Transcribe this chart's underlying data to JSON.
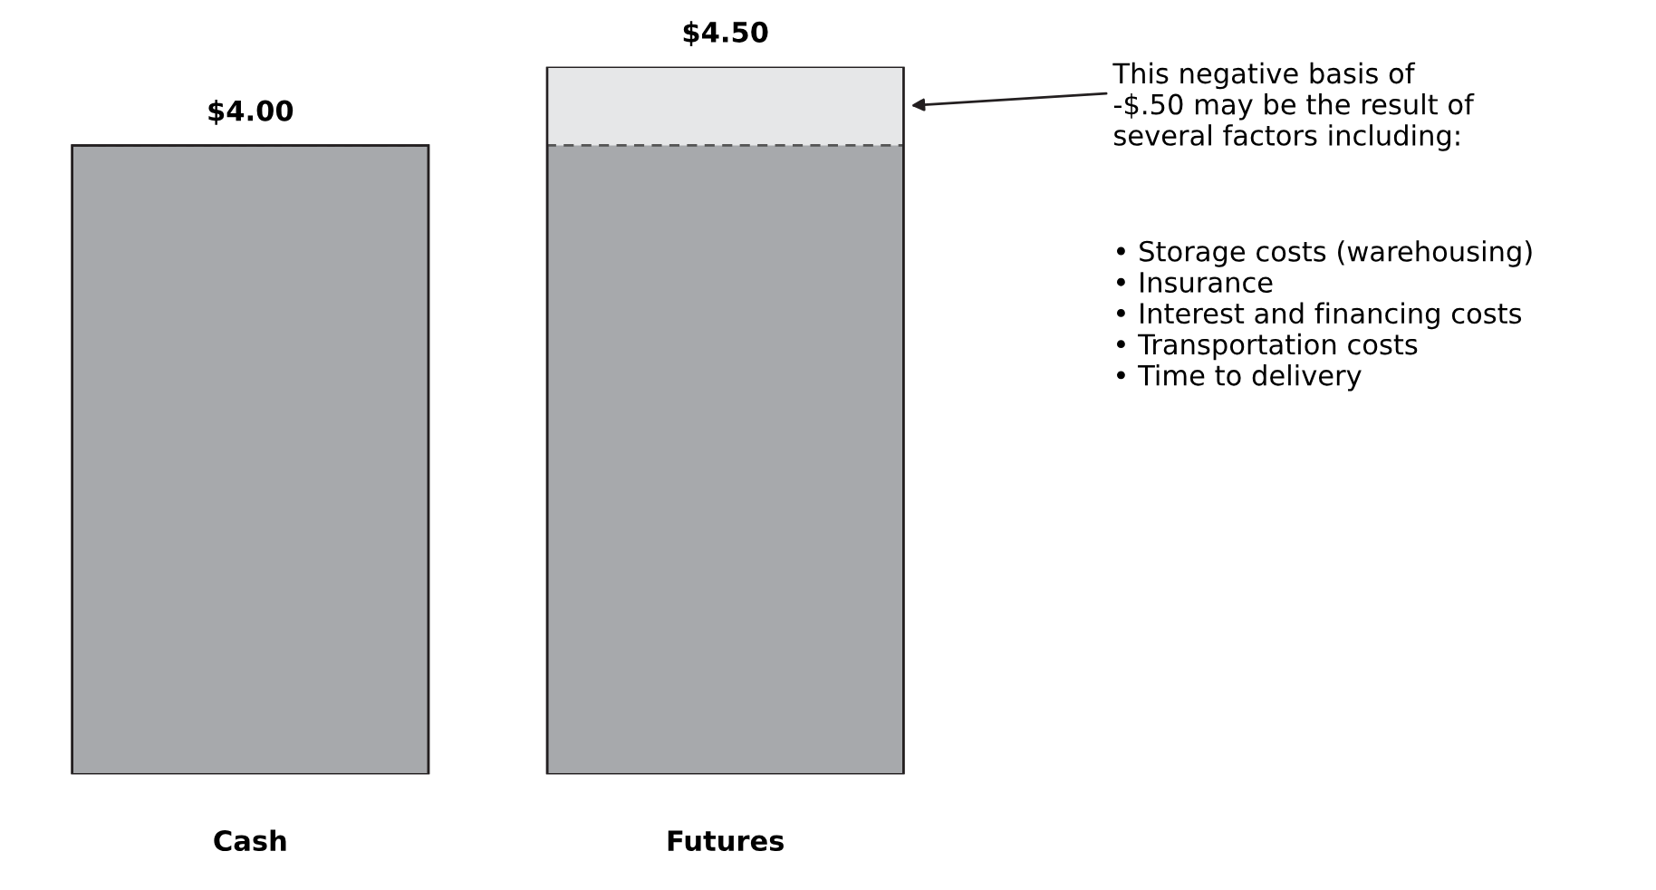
{
  "chart_data": {
    "type": "bar",
    "categories": [
      "Cash",
      "Futures"
    ],
    "series": [
      {
        "color": "#a7a9ac",
        "values": [
          4.0,
          4.5
        ],
        "value_labels": [
          "$4.00",
          "$4.50"
        ]
      }
    ],
    "bands": [
      {
        "axis": "y",
        "from": 4.0,
        "to": 4.5,
        "color": "#e6e7e8"
      }
    ],
    "ref_lines": [
      {
        "axis": "y",
        "value": 4.0,
        "label": null,
        "color": "#555555",
        "line_style": "dashed"
      }
    ],
    "tick_labels": "x",
    "annotations": [
      "This negative basis of\n-$.50 may be the result of\nseveral factors including:",
      "• Storage costs (warehousing)\n• Insurance\n• Interest and financing costs\n• Transportation costs\n• Time to delivery"
    ]
  }
}
